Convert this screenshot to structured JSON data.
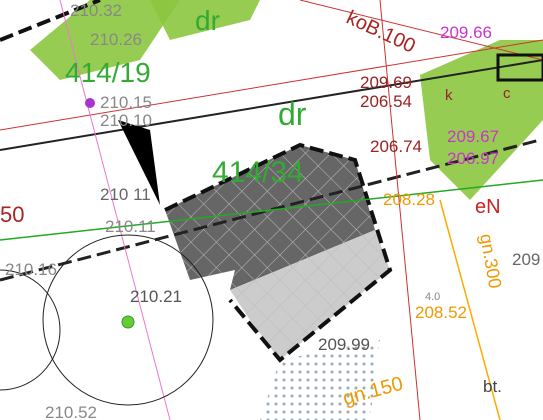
{
  "labels": {
    "l210_32": "210.32",
    "dr_top": "dr",
    "kob": "koB.100",
    "l209_66": "209.66",
    "l210_26": "210.26",
    "parcel_414_19": "414/19",
    "l210_15": "210.15",
    "l210_10": "210.10",
    "dr_mid": "dr",
    "l209_69": "209.69",
    "l206_54": "206.54",
    "k": "k",
    "c": "c",
    "l206_74": "206.74",
    "l209_67": "209.67",
    "l206_97": "206.97",
    "parcel_414_34": "414/34",
    "l210_11a": "210 11",
    "l50": "50",
    "l210_11b": "210.11",
    "l208_28": "208.28",
    "eN": "eN",
    "gn300": "gn.300",
    "l209": "209",
    "l210_16": "210.16",
    "l210_21": "210.21",
    "l4_0": "4.0",
    "l208_52": "208.52",
    "l209_99": "209.99",
    "gn150": "gn.150",
    "bt": "bt.",
    "l210_52": "210.52"
  }
}
